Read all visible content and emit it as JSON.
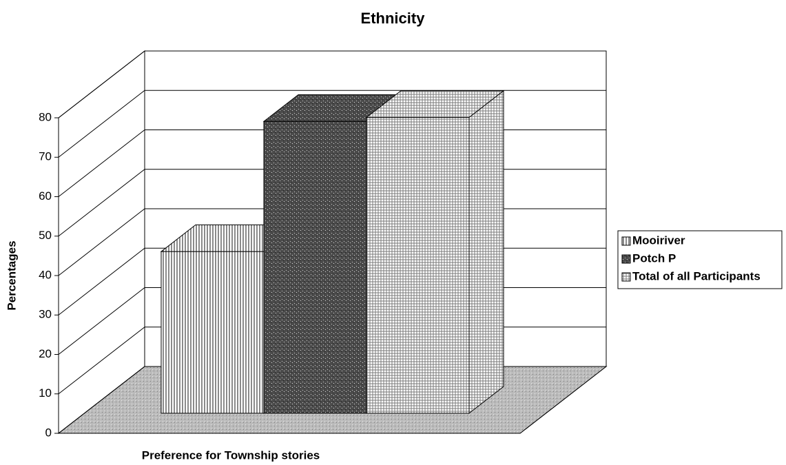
{
  "chart_data": {
    "type": "bar3d",
    "title": "Ethnicity",
    "y_label": "Percentages",
    "categories": [
      "Preference for Township stories"
    ],
    "series": [
      {
        "name": "Mooiriver",
        "color": "#8a8a8a",
        "values": [
          41
        ]
      },
      {
        "name": "Potch P",
        "color": "#4a4a4a",
        "values": [
          74
        ]
      },
      {
        "name": "Total of all Participants",
        "color": "#7a7a7a",
        "values": [
          75
        ]
      }
    ],
    "ylim": [
      0,
      80
    ],
    "yticks": [
      0,
      10,
      20,
      30,
      40,
      50,
      60,
      70,
      80
    ],
    "grid": true,
    "legend": "right"
  }
}
